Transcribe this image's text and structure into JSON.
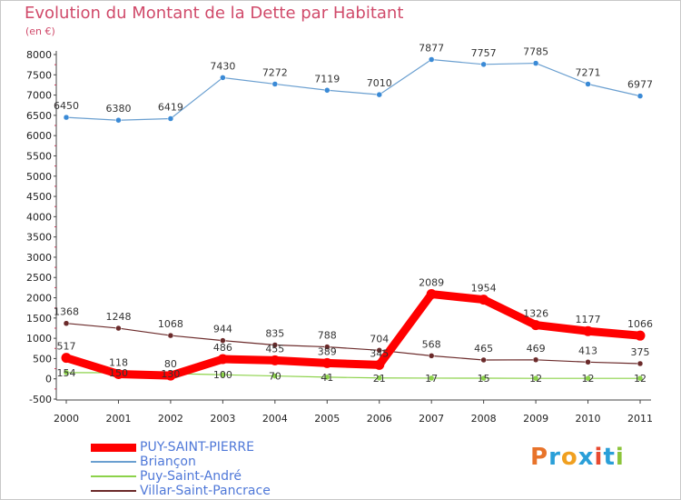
{
  "title": "Evolution du Montant de la Dette par Habitant",
  "unit_label": "(en €)",
  "logo": {
    "text": "Proxiti",
    "colors": [
      "#e8732a",
      "#2a9fd8",
      "#f0a020",
      "#2a9fd8",
      "#e84a30",
      "#2a9fd8",
      "#8cc43a"
    ]
  },
  "chart_data": {
    "type": "line",
    "x": [
      "2000",
      "2001",
      "2002",
      "2003",
      "2004",
      "2005",
      "2006",
      "2007",
      "2008",
      "2009",
      "2010",
      "2011"
    ],
    "ylim": [
      -500,
      8000
    ],
    "yticks": [
      -500,
      0,
      500,
      1000,
      1500,
      2000,
      2500,
      3000,
      3500,
      4000,
      4500,
      5000,
      5500,
      6000,
      6500,
      7000,
      7500,
      8000
    ],
    "grid": false,
    "series": [
      {
        "name": "PUY-SAINT-PIERRE",
        "color": "#ff0000",
        "values": [
          517,
          118,
          80,
          486,
          455,
          389,
          345,
          2089,
          1954,
          1326,
          1177,
          1066
        ]
      },
      {
        "name": "Briançon",
        "color": "#6a9fd0",
        "values": [
          6450,
          6380,
          6419,
          7430,
          7272,
          7119,
          7010,
          7877,
          7757,
          7785,
          7271,
          6977
        ]
      },
      {
        "name": "Puy-Saint-André",
        "color": "#8cd24a",
        "values": [
          154,
          150,
          130,
          100,
          70,
          41,
          21,
          17,
          15,
          12,
          12,
          12
        ]
      },
      {
        "name": "Villar-Saint-Pancrace",
        "color": "#6b2a2a",
        "values": [
          1368,
          1248,
          1068,
          944,
          835,
          788,
          704,
          568,
          465,
          469,
          413,
          375
        ]
      }
    ]
  }
}
